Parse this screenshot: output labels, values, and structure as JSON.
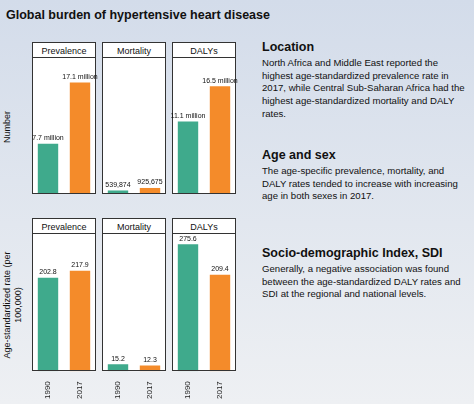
{
  "title": "Global burden of hypertensive heart disease",
  "chart_data": [
    {
      "type": "bar",
      "title": "Prevalence",
      "ylabel": "Number",
      "categories": [
        "1990",
        "2017"
      ],
      "values": [
        7700000,
        17100000
      ],
      "value_labels": [
        "7.7 million",
        "17.1 million"
      ],
      "colors": [
        "#3faa8c",
        "#f48b2a"
      ],
      "ylim": [
        0,
        21000000
      ],
      "data_labels": true,
      "tick_labels": false,
      "grid": false
    },
    {
      "type": "bar",
      "title": "Mortality",
      "categories": [
        "1990",
        "2017"
      ],
      "values": [
        539874,
        925675
      ],
      "value_labels": [
        "539,874",
        "925,675"
      ],
      "colors": [
        "#3faa8c",
        "#f48b2a"
      ],
      "ylim": [
        0,
        21000000
      ],
      "data_labels": true,
      "tick_labels": false,
      "grid": false
    },
    {
      "type": "bar",
      "title": "DALYs",
      "categories": [
        "1990",
        "2017"
      ],
      "values": [
        11100000,
        16500000
      ],
      "value_labels": [
        "11.1 million",
        "16.5 million"
      ],
      "colors": [
        "#3faa8c",
        "#f48b2a"
      ],
      "ylim": [
        0,
        21000000
      ],
      "data_labels": true,
      "tick_labels": false,
      "grid": false
    },
    {
      "type": "bar",
      "title": "Prevalence",
      "ylabel": "Age-standardized rate (per 100,000)",
      "categories": [
        "1990",
        "2017"
      ],
      "values": [
        202.8,
        217.9
      ],
      "colors": [
        "#3faa8c",
        "#f48b2a"
      ],
      "ylim": [
        0,
        300
      ],
      "data_labels": true,
      "tick_labels": "x",
      "grid": false
    },
    {
      "type": "bar",
      "title": "Mortality",
      "categories": [
        "1990",
        "2017"
      ],
      "values": [
        15.2,
        12.3
      ],
      "colors": [
        "#3faa8c",
        "#f48b2a"
      ],
      "ylim": [
        0,
        300
      ],
      "data_labels": true,
      "tick_labels": "x",
      "grid": false
    },
    {
      "type": "bar",
      "title": "DALYs",
      "categories": [
        "1990",
        "2017"
      ],
      "values": [
        275.6,
        209.4
      ],
      "colors": [
        "#3faa8c",
        "#f48b2a"
      ],
      "ylim": [
        0,
        300
      ],
      "data_labels": true,
      "tick_labels": "x",
      "grid": false
    }
  ],
  "sections": [
    {
      "heading": "Location",
      "text": "North Africa and Middle East reported the highest age-standardized prevalence rate in 2017, while Central Sub-Saharan Africa had the highest age-standardized mortality and DALY rates."
    },
    {
      "heading": "Age and sex",
      "text": "The age-specific prevalence, mortality, and DALY rates tended to increase with increasing age in both sexes in 2017."
    },
    {
      "heading": "Socio-demographic Index, SDI",
      "text": "Generally, a negative association was found between the age-standardized DALY rates and SDI at the regional and national levels."
    }
  ]
}
